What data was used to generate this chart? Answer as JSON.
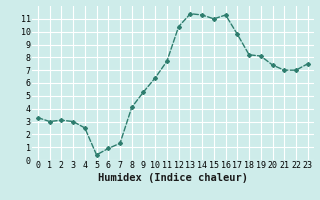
{
  "x": [
    0,
    1,
    2,
    3,
    4,
    5,
    6,
    7,
    8,
    9,
    10,
    11,
    12,
    13,
    14,
    15,
    16,
    17,
    18,
    19,
    20,
    21,
    22,
    23
  ],
  "y": [
    3.3,
    3.0,
    3.1,
    3.0,
    2.5,
    0.4,
    0.9,
    1.3,
    4.1,
    5.3,
    6.4,
    7.7,
    10.4,
    11.4,
    11.3,
    11.0,
    11.3,
    9.8,
    8.2,
    8.1,
    7.4,
    7.0,
    7.0,
    7.5
  ],
  "line_color": "#2e7d6e",
  "marker": "D",
  "marker_size": 2.0,
  "background_color": "#ceecea",
  "grid_color": "#b0d8d4",
  "xlabel": "Humidex (Indice chaleur)",
  "xlim": [
    -0.5,
    23.5
  ],
  "ylim": [
    0,
    12
  ],
  "xticks": [
    0,
    1,
    2,
    3,
    4,
    5,
    6,
    7,
    8,
    9,
    10,
    11,
    12,
    13,
    14,
    15,
    16,
    17,
    18,
    19,
    20,
    21,
    22,
    23
  ],
  "yticks": [
    0,
    1,
    2,
    3,
    4,
    5,
    6,
    7,
    8,
    9,
    10,
    11
  ],
  "xlabel_fontsize": 7.5,
  "tick_fontsize": 6.0,
  "line_width": 1.0
}
